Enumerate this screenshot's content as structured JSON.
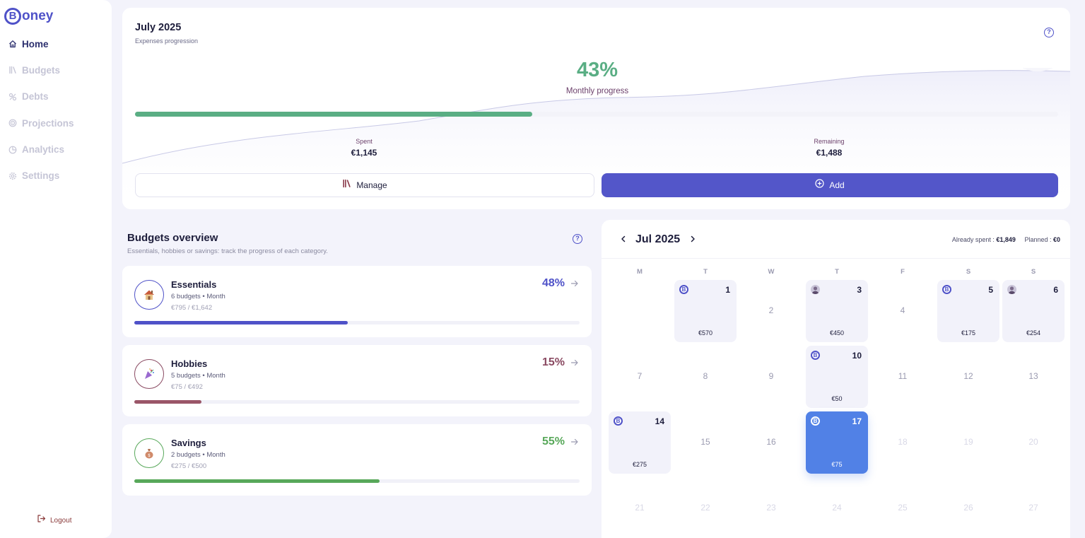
{
  "app": {
    "logo_letter": "B",
    "logo_text": "oney"
  },
  "sidebar": {
    "items": [
      {
        "label": "Home",
        "icon": "home-icon"
      },
      {
        "label": "Budgets",
        "icon": "budgets-icon"
      },
      {
        "label": "Debts",
        "icon": "debts-icon"
      },
      {
        "label": "Projections",
        "icon": "projections-icon"
      },
      {
        "label": "Analytics",
        "icon": "analytics-icon"
      },
      {
        "label": "Settings",
        "icon": "gear-icon"
      }
    ],
    "logout": "Logout"
  },
  "progress": {
    "title": "July 2025",
    "subtitle": "Expenses progression",
    "percent": "43%",
    "percent_value": 43,
    "percent_label": "Monthly progress",
    "spent_label": "Spent",
    "spent_value": "€1,145",
    "remaining_label": "Remaining",
    "remaining_value": "€1,488",
    "manage_label": "Manage",
    "add_label": "Add",
    "accent": "#5aae84"
  },
  "budgets": {
    "title": "Budgets overview",
    "subtitle": "Essentials, hobbies or savings: track the progress of each category.",
    "items": [
      {
        "name": "Essentials",
        "meta": "6 budgets • Month",
        "amount": "€795 / €1,642",
        "percent": "48%",
        "progress": 0.48,
        "color": "#4f52c8",
        "icon": "house-icon"
      },
      {
        "name": "Hobbies",
        "meta": "5 budgets • Month",
        "amount": "€75 / €492",
        "percent": "15%",
        "progress": 0.15,
        "color": "#8a4a62",
        "icon": "party-popper-icon"
      },
      {
        "name": "Savings",
        "meta": "2 budgets • Month",
        "amount": "€275 / €500",
        "percent": "55%",
        "progress": 0.55,
        "color": "#58a85a",
        "icon": "money-bag-icon"
      }
    ]
  },
  "calendar": {
    "month": "Jul 2025",
    "already_spent_label": "Already spent :",
    "already_spent_value": "€1,849",
    "planned_label": "Planned :",
    "planned_value": "€0",
    "weekdays": [
      "M",
      "T",
      "W",
      "T",
      "F",
      "S",
      "S"
    ],
    "badge_letter": "B",
    "days": [
      {
        "n": "1",
        "amount": "€570",
        "badge": "logo"
      },
      {
        "n": "2"
      },
      {
        "n": "3",
        "amount": "€450",
        "badge": "avatar"
      },
      {
        "n": "4"
      },
      {
        "n": "5",
        "amount": "€175",
        "badge": "logo"
      },
      {
        "n": "6",
        "amount": "€254",
        "badge": "avatar"
      },
      {
        "n": "7"
      },
      {
        "n": "8"
      },
      {
        "n": "9"
      },
      {
        "n": "10",
        "amount": "€50",
        "badge": "logo"
      },
      {
        "n": "11"
      },
      {
        "n": "12"
      },
      {
        "n": "13"
      },
      {
        "n": "14",
        "amount": "€275",
        "badge": "logo"
      },
      {
        "n": "15"
      },
      {
        "n": "16"
      },
      {
        "n": "17",
        "amount": "€75",
        "badge": "logo",
        "selected": true
      },
      {
        "n": "18",
        "dim": true
      },
      {
        "n": "19",
        "dim": true
      },
      {
        "n": "20",
        "dim": true
      },
      {
        "n": "21",
        "dim": true
      },
      {
        "n": "22",
        "dim": true
      },
      {
        "n": "23",
        "dim": true
      },
      {
        "n": "24",
        "dim": true
      },
      {
        "n": "25",
        "dim": true
      },
      {
        "n": "26",
        "dim": true
      },
      {
        "n": "27",
        "dim": true
      }
    ]
  }
}
